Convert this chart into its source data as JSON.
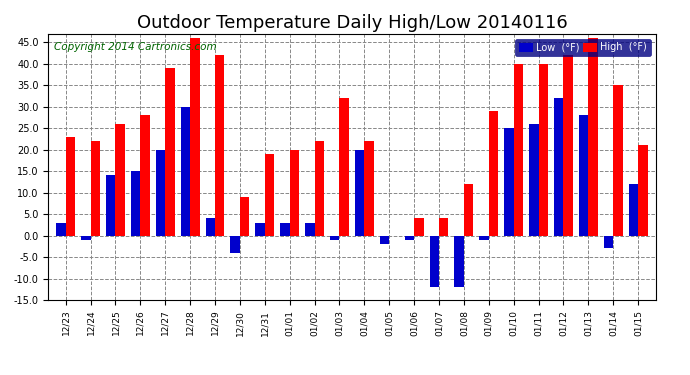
{
  "title": "Outdoor Temperature Daily High/Low 20140116",
  "copyright": "Copyright 2014 Cartronics.com",
  "legend_low": "Low  (°F)",
  "legend_high": "High  (°F)",
  "dates": [
    "12/23",
    "12/24",
    "12/25",
    "12/26",
    "12/27",
    "12/28",
    "12/29",
    "12/30",
    "12/31",
    "01/01",
    "01/02",
    "01/03",
    "01/04",
    "01/05",
    "01/06",
    "01/07",
    "01/08",
    "01/09",
    "01/10",
    "01/11",
    "01/12",
    "01/13",
    "01/14",
    "01/15"
  ],
  "high": [
    23,
    22,
    26,
    28,
    39,
    46,
    42,
    9,
    19,
    20,
    22,
    32,
    22,
    0,
    4,
    4,
    12,
    29,
    40,
    40,
    42,
    46,
    35,
    21
  ],
  "low": [
    3,
    -1,
    14,
    15,
    20,
    30,
    4,
    -4,
    3,
    3,
    3,
    -1,
    20,
    -2,
    -1,
    -12,
    -12,
    -1,
    25,
    26,
    32,
    28,
    -3,
    12
  ],
  "ylim": [
    -15,
    47
  ],
  "yticks": [
    -15.0,
    -10.0,
    -5.0,
    0.0,
    5.0,
    10.0,
    15.0,
    20.0,
    25.0,
    30.0,
    35.0,
    40.0,
    45.0
  ],
  "high_color": "#ff0000",
  "low_color": "#0000cc",
  "bg_color": "#ffffff",
  "grid_color": "#888888",
  "title_fontsize": 13,
  "copyright_fontsize": 7.5,
  "bar_width": 0.38,
  "figwidth": 6.9,
  "figheight": 3.75,
  "dpi": 100
}
